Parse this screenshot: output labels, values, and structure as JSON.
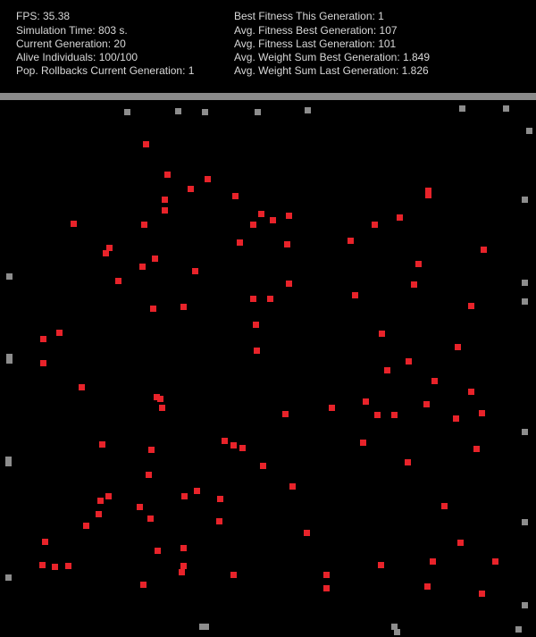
{
  "hud": {
    "fps": "FPS: 35.38",
    "sim_time": "Simulation Time: 803 s.",
    "current_gen": "Current Generation: 20",
    "alive": "Alive Individuals: 100/100",
    "rollbacks": "Pop. Rollbacks Current Generation: 1",
    "best_fitness": "Best Fitness This Generation: 1",
    "avg_fit_best": "Avg. Fitness Best Generation: 107",
    "avg_fit_last": "Avg. Fitness Last Generation: 101",
    "avg_w_best": "Avg. Weight Sum Best Generation: 1.849",
    "avg_w_last": "Avg. Weight Sum Last Generation: 1.826"
  },
  "colors": {
    "agent": "#e8232a",
    "obstacle": "#8d8d8d",
    "bar": "#8a8a8a",
    "text": "#d8d8d8"
  }
}
